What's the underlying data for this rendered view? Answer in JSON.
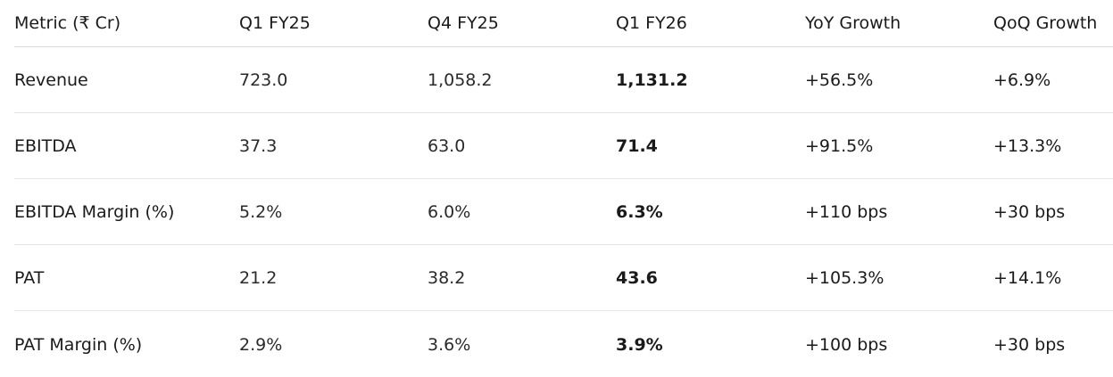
{
  "table": {
    "headers": [
      "Metric (₹ Cr)",
      "Q1 FY25",
      "Q4 FY25",
      "Q1 FY26",
      "YoY Growth",
      "QoQ Growth"
    ],
    "rows": [
      [
        "Revenue",
        "723.0",
        "1,058.2",
        "1,131.2",
        "+56.5%",
        "+6.9%"
      ],
      [
        "EBITDA",
        "37.3",
        "63.0",
        "71.4",
        "+91.5%",
        "+13.3%"
      ],
      [
        "EBITDA Margin (%)",
        "5.2%",
        "6.0%",
        "6.3%",
        "+110 bps",
        "+30 bps"
      ],
      [
        "PAT",
        "21.2",
        "38.2",
        "43.6",
        "+105.3%",
        "+14.1%"
      ],
      [
        "PAT Margin (%)",
        "2.9%",
        "3.6%",
        "3.9%",
        "+100 bps",
        "+30 bps"
      ]
    ]
  }
}
